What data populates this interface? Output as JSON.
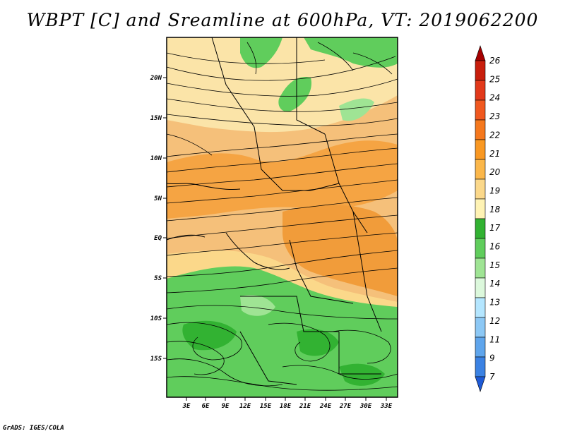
{
  "title": "WBPT [C] and Sreamline at 600hPa, VT: 2019062200",
  "footer": "GrADS: IGES/COLA",
  "lat_labels": [
    "20N",
    "15N",
    "10N",
    "5N",
    "EQ",
    "5S",
    "10S",
    "15S"
  ],
  "lon_labels": [
    "3E",
    "6E",
    "9E",
    "12E",
    "15E",
    "18E",
    "21E",
    "24E",
    "27E",
    "30E",
    "33E"
  ],
  "colorbar": {
    "labels": [
      "26",
      "25",
      "24",
      "23",
      "22",
      "21",
      "20",
      "19",
      "18",
      "17",
      "16",
      "15",
      "14",
      "13",
      "12",
      "11",
      "9",
      "7"
    ],
    "colors": [
      "#a50000",
      "#c81e0c",
      "#e2391a",
      "#f0581f",
      "#f5781d",
      "#f99822",
      "#fbb74a",
      "#fbd88a",
      "#fff3b4",
      "#32b232",
      "#60cd5c",
      "#9fe494",
      "#dcf8dc",
      "#b4e6ff",
      "#8cc8f5",
      "#5fa5ec",
      "#3b82e3",
      "#1e5ad6"
    ]
  }
}
